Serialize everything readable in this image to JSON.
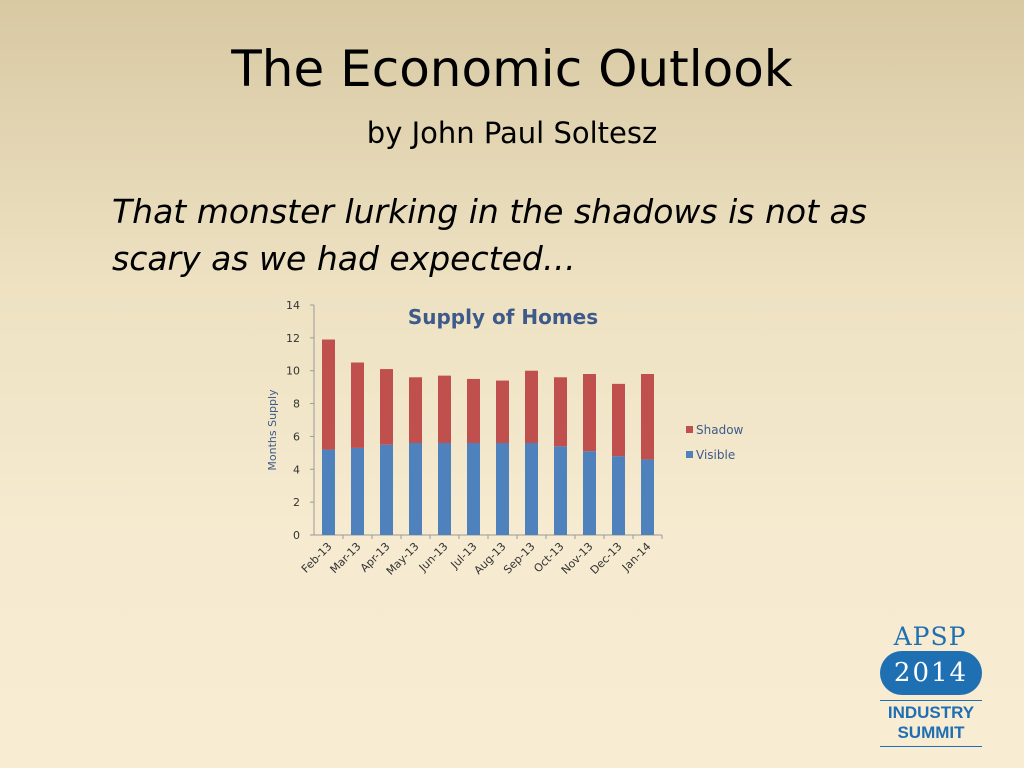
{
  "slide": {
    "title": "The Economic Outlook",
    "subtitle": "by John Paul Soltesz",
    "quote": "That monster lurking in the shadows is not as scary as we had expected…"
  },
  "logo": {
    "brand": "APSP",
    "year": "2014",
    "line1": "INDUSTRY",
    "line2": "SUMMIT",
    "color": "#1f6fb3"
  },
  "chart_data": {
    "type": "bar",
    "stacked": true,
    "title": "Supply of Homes",
    "xlabel": "",
    "ylabel": "Months Supply",
    "ylim": [
      0,
      14
    ],
    "yticks": [
      0,
      2,
      4,
      6,
      8,
      10,
      12,
      14
    ],
    "grid": false,
    "legend_position": "right",
    "categories": [
      "Feb-13",
      "Mar-13",
      "Apr-13",
      "May-13",
      "Jun-13",
      "Jul-13",
      "Aug-13",
      "Sep-13",
      "Oct-13",
      "Nov-13",
      "Dec-13",
      "Jan-14"
    ],
    "series": [
      {
        "name": "Visible",
        "color": "#4f81bd",
        "values": [
          5.2,
          5.3,
          5.5,
          5.6,
          5.6,
          5.6,
          5.6,
          5.6,
          5.4,
          5.1,
          4.8,
          4.6
        ]
      },
      {
        "name": "Shadow",
        "color": "#c0504d",
        "values": [
          6.7,
          5.2,
          4.6,
          4.0,
          4.1,
          3.9,
          3.8,
          4.4,
          4.2,
          4.7,
          4.4,
          5.2
        ]
      }
    ]
  }
}
